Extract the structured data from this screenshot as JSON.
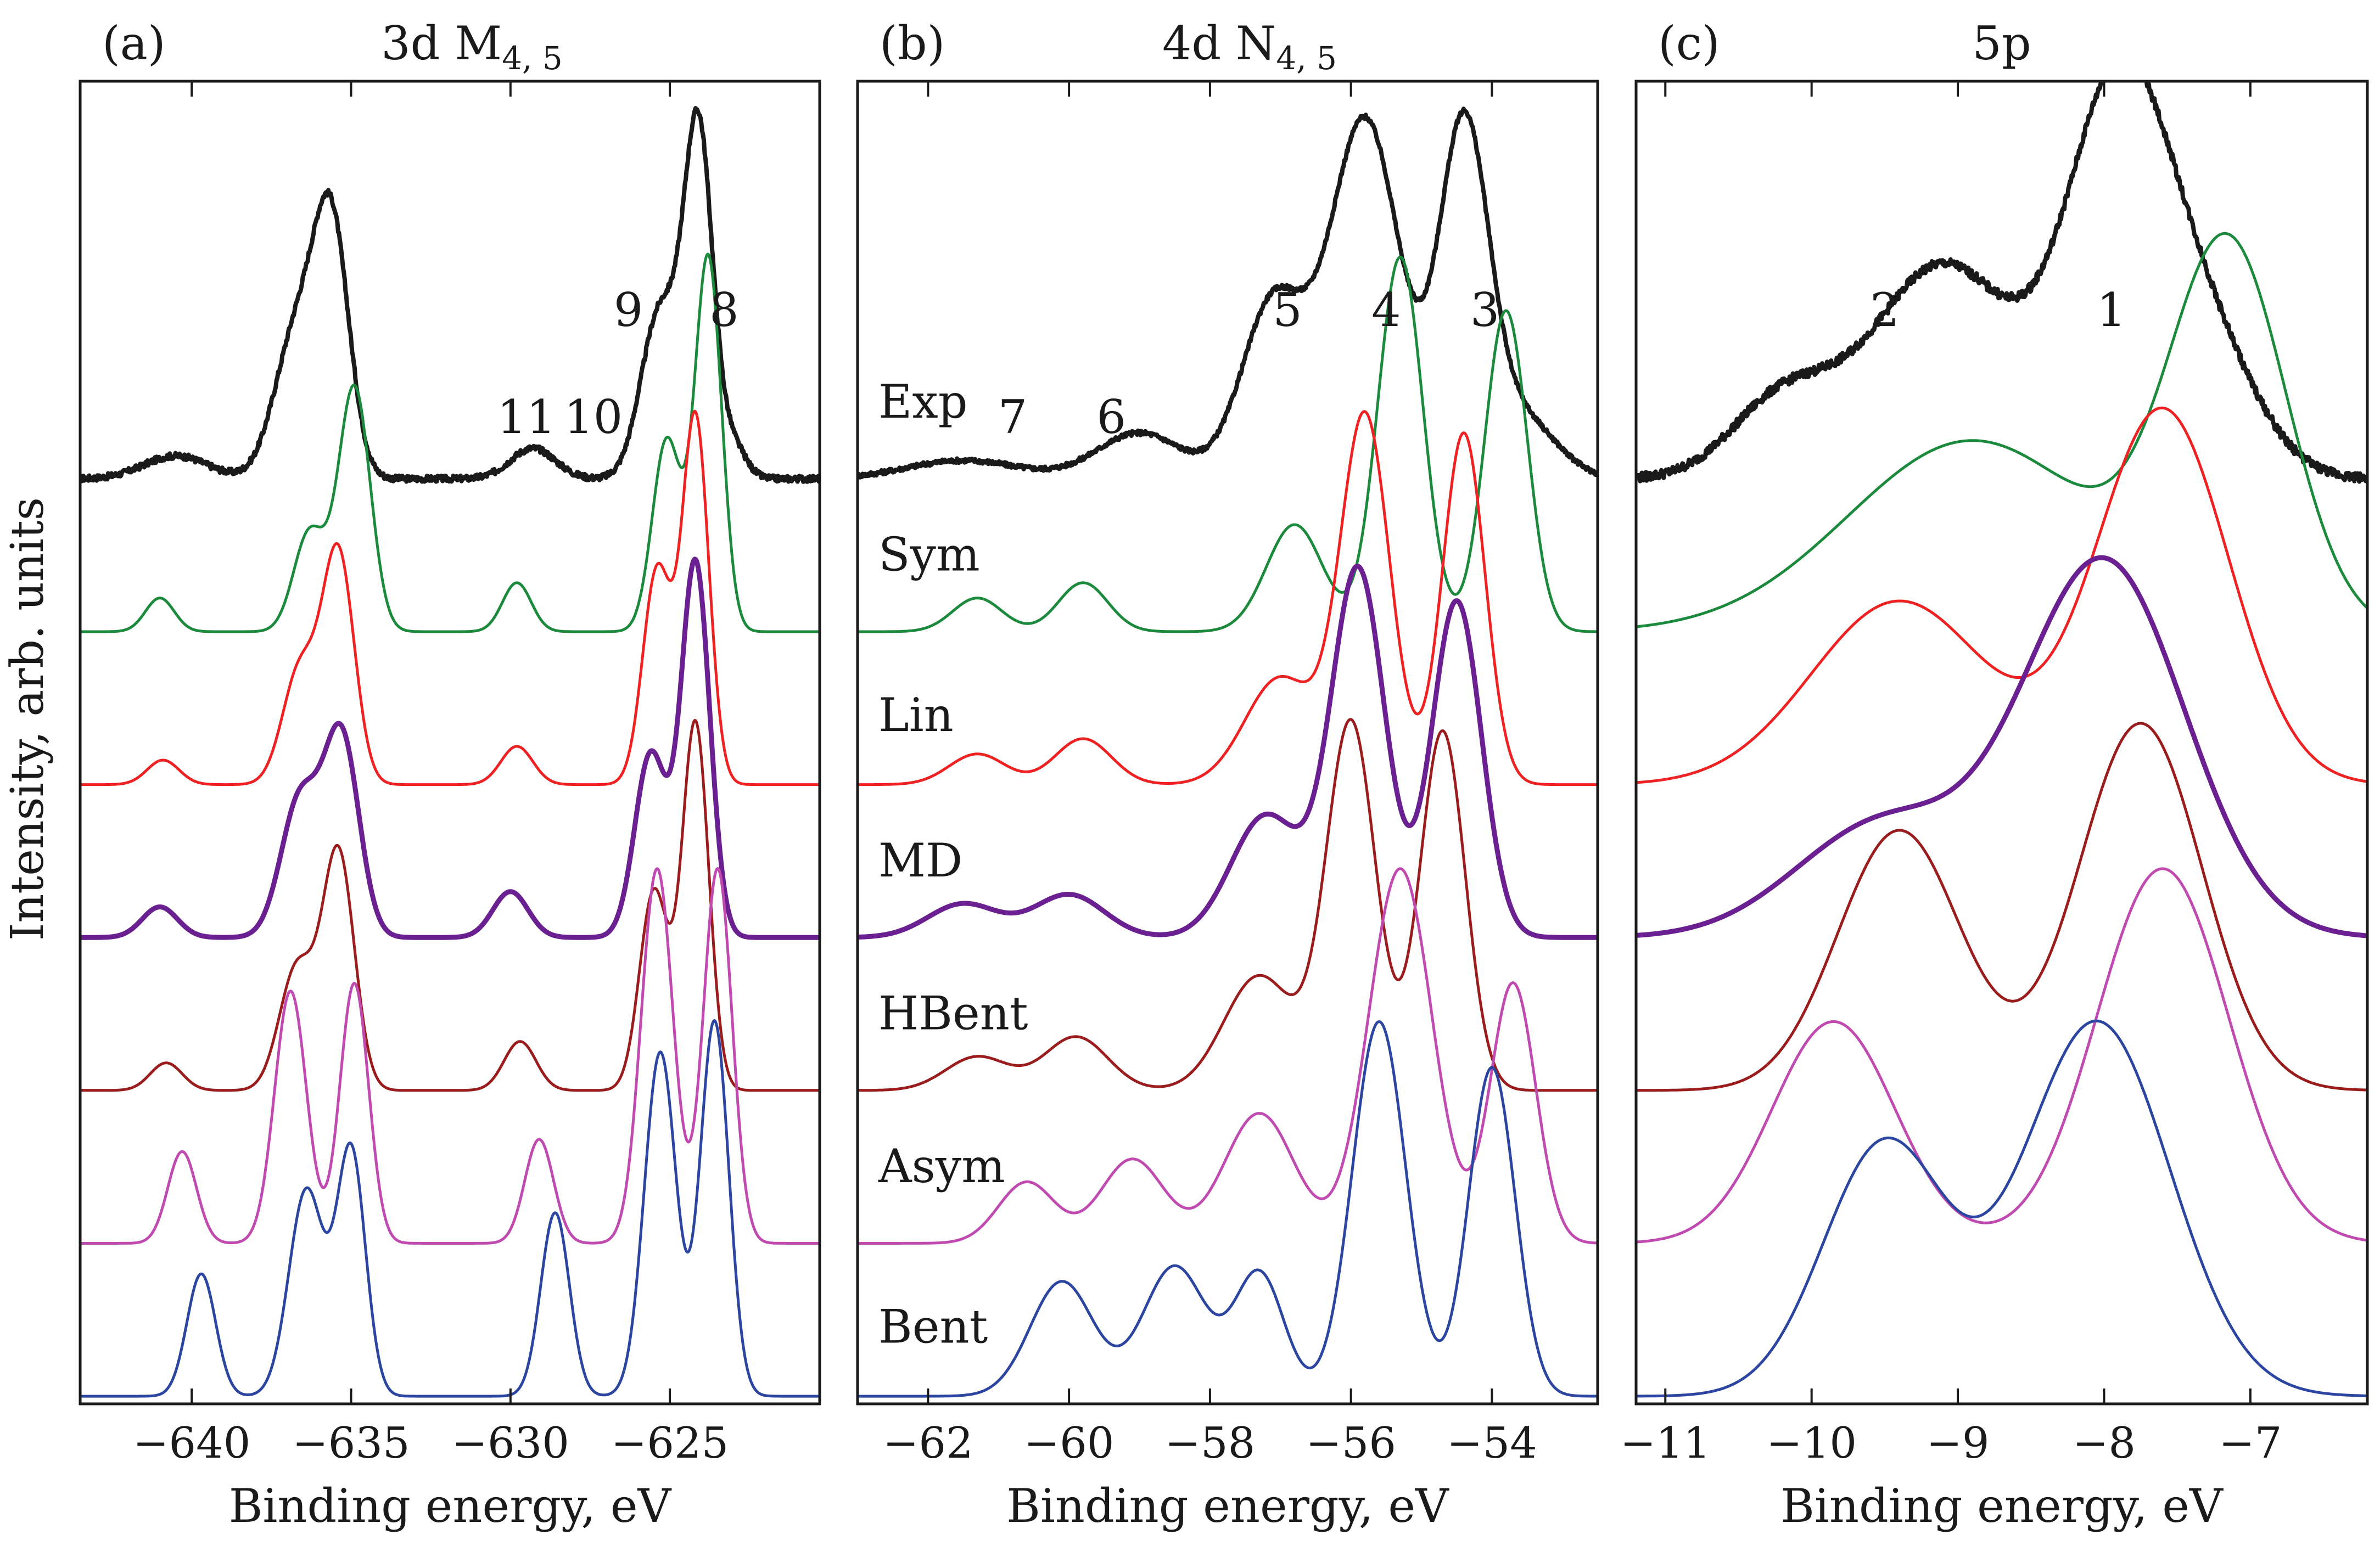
{
  "ylabel": "Intensity, arb. units",
  "colors": {
    "Exp": "#1a1a1a",
    "Sym": "#1b8a3c",
    "Lin": "#ee2222",
    "MD": "#6a2090",
    "HBent": "#9b1c1c",
    "Asym": "#c04ab0",
    "Bent": "#2b45a0"
  },
  "chart_data": [
    {
      "type": "line",
      "panel": "(a)",
      "title": "3d M₄,₅",
      "xlabel": "Binding energy, eV",
      "xlim": [
        -643.5,
        -620.3
      ],
      "xticks": [
        -640,
        -635,
        -630,
        -625
      ],
      "xtick_labels": [
        "−640",
        "−635",
        "−630",
        "−625"
      ],
      "peak_labels": [
        {
          "text": "9",
          "x": -626.3,
          "y": 7.0
        },
        {
          "text": "8",
          "x": -623.3,
          "y": 7.0
        },
        {
          "text": "11",
          "x": -629.5,
          "y": 6.3
        },
        {
          "text": "10",
          "x": -627.4,
          "y": 6.3
        }
      ],
      "series": [
        {
          "name": "Exp",
          "baseline": 6.0,
          "noise": 0.02,
          "peaks": [
            [
              -640.5,
              0.15,
              1.0
            ],
            [
              -636.7,
              0.95,
              0.7
            ],
            [
              -635.6,
              1.55,
              0.55
            ],
            [
              -629.3,
              0.2,
              0.7
            ],
            [
              -625.3,
              1.1,
              0.6
            ],
            [
              -624.1,
              2.25,
              0.45
            ],
            [
              -623.0,
              0.2,
              0.4
            ]
          ]
        },
        {
          "name": "Sym",
          "baseline": 5.0,
          "peaks": [
            [
              -641.0,
              0.22,
              0.45
            ],
            [
              -636.3,
              0.65,
              0.5
            ],
            [
              -634.9,
              1.6,
              0.5
            ],
            [
              -629.8,
              0.32,
              0.45
            ],
            [
              -625.1,
              1.25,
              0.45
            ],
            [
              -623.8,
              2.45,
              0.42
            ]
          ]
        },
        {
          "name": "Lin",
          "baseline": 4.0,
          "peaks": [
            [
              -640.9,
              0.16,
              0.5
            ],
            [
              -636.6,
              0.75,
              0.55
            ],
            [
              -635.4,
              1.5,
              0.5
            ],
            [
              -629.8,
              0.25,
              0.5
            ],
            [
              -625.4,
              1.4,
              0.45
            ],
            [
              -624.2,
              2.4,
              0.42
            ]
          ]
        },
        {
          "name": "MD",
          "baseline": 3.0,
          "peaks": [
            [
              -641.0,
              0.2,
              0.55
            ],
            [
              -636.6,
              0.9,
              0.6
            ],
            [
              -635.3,
              1.3,
              0.55
            ],
            [
              -630.0,
              0.3,
              0.55
            ],
            [
              -625.6,
              1.2,
              0.5
            ],
            [
              -624.2,
              2.45,
              0.45
            ]
          ]
        },
        {
          "name": "HBent",
          "baseline": 2.0,
          "peaks": [
            [
              -640.8,
              0.18,
              0.5
            ],
            [
              -636.7,
              0.8,
              0.55
            ],
            [
              -635.4,
              1.55,
              0.5
            ],
            [
              -629.7,
              0.32,
              0.5
            ],
            [
              -625.5,
              1.3,
              0.45
            ],
            [
              -624.2,
              2.4,
              0.42
            ]
          ]
        },
        {
          "name": "Asym",
          "baseline": 1.0,
          "peaks": [
            [
              -640.3,
              0.6,
              0.45
            ],
            [
              -636.9,
              1.65,
              0.5
            ],
            [
              -634.9,
              1.7,
              0.45
            ],
            [
              -629.1,
              0.68,
              0.45
            ],
            [
              -625.4,
              2.45,
              0.5
            ],
            [
              -623.5,
              2.45,
              0.45
            ]
          ]
        },
        {
          "name": "Bent",
          "baseline": 0.0,
          "peaks": [
            [
              -639.7,
              0.8,
              0.45
            ],
            [
              -636.4,
              1.35,
              0.55
            ],
            [
              -635.0,
              1.6,
              0.45
            ],
            [
              -628.6,
              1.2,
              0.45
            ],
            [
              -625.3,
              2.25,
              0.5
            ],
            [
              -623.6,
              2.45,
              0.45
            ]
          ]
        }
      ]
    },
    {
      "type": "line",
      "panel": "(b)",
      "title": "4d N₄,₅",
      "xlabel": "Binding energy, eV",
      "xlim": [
        -63.0,
        -52.5
      ],
      "xticks": [
        -62,
        -60,
        -58,
        -56,
        -54
      ],
      "xtick_labels": [
        "−62",
        "−60",
        "−58",
        "−56",
        "−54"
      ],
      "peak_labels": [
        {
          "text": "5",
          "x": -56.9,
          "y": 7.0
        },
        {
          "text": "4",
          "x": -55.5,
          "y": 7.0
        },
        {
          "text": "3",
          "x": -54.1,
          "y": 7.0
        },
        {
          "text": "7",
          "x": -60.8,
          "y": 6.3
        },
        {
          "text": "6",
          "x": -59.4,
          "y": 6.3
        }
      ],
      "labels_left": [
        {
          "text": "Exp",
          "series": "Exp",
          "y": 6.4
        },
        {
          "text": "Sym",
          "series": "Sym",
          "y": 5.4
        },
        {
          "text": "Lin",
          "series": "Lin",
          "y": 4.35
        },
        {
          "text": "MD",
          "series": "MD",
          "y": 3.4
        },
        {
          "text": "HBent",
          "series": "HBent",
          "y": 2.4
        },
        {
          "text": "Asym",
          "series": "Asym",
          "y": 1.4
        },
        {
          "text": "Bent",
          "series": "Bent",
          "y": 0.35
        }
      ],
      "series": [
        {
          "name": "Exp",
          "baseline": 6.0,
          "noise": 0.015,
          "peaks": [
            [
              -61.5,
              0.12,
              0.8
            ],
            [
              -59.0,
              0.3,
              0.6
            ],
            [
              -57.1,
              1.15,
              0.45
            ],
            [
              -55.8,
              2.35,
              0.5
            ],
            [
              -54.4,
              2.25,
              0.35
            ],
            [
              -53.6,
              0.4,
              0.5
            ]
          ]
        },
        {
          "name": "Sym",
          "baseline": 5.0,
          "peaks": [
            [
              -61.3,
              0.22,
              0.35
            ],
            [
              -59.8,
              0.32,
              0.35
            ],
            [
              -56.8,
              0.7,
              0.4
            ],
            [
              -55.3,
              2.45,
              0.32
            ],
            [
              -53.8,
              2.1,
              0.3
            ]
          ]
        },
        {
          "name": "Lin",
          "baseline": 4.0,
          "peaks": [
            [
              -61.3,
              0.2,
              0.4
            ],
            [
              -59.8,
              0.3,
              0.4
            ],
            [
              -57.0,
              0.7,
              0.5
            ],
            [
              -55.8,
              2.4,
              0.35
            ],
            [
              -54.4,
              2.3,
              0.3
            ]
          ]
        },
        {
          "name": "MD",
          "baseline": 3.0,
          "peaks": [
            [
              -61.5,
              0.22,
              0.5
            ],
            [
              -60.0,
              0.28,
              0.5
            ],
            [
              -57.2,
              0.8,
              0.5
            ],
            [
              -55.9,
              2.4,
              0.38
            ],
            [
              -54.5,
              2.2,
              0.35
            ]
          ]
        },
        {
          "name": "HBent",
          "baseline": 2.0,
          "peaks": [
            [
              -61.3,
              0.22,
              0.45
            ],
            [
              -59.9,
              0.35,
              0.45
            ],
            [
              -57.3,
              0.75,
              0.5
            ],
            [
              -56.0,
              2.4,
              0.35
            ],
            [
              -54.7,
              2.35,
              0.32
            ]
          ]
        },
        {
          "name": "Asym",
          "baseline": 1.0,
          "peaks": [
            [
              -60.6,
              0.4,
              0.4
            ],
            [
              -59.1,
              0.55,
              0.45
            ],
            [
              -57.3,
              0.85,
              0.5
            ],
            [
              -55.3,
              2.45,
              0.45
            ],
            [
              -53.7,
              1.7,
              0.32
            ]
          ]
        },
        {
          "name": "Bent",
          "baseline": 0.0,
          "peaks": [
            [
              -60.1,
              0.75,
              0.45
            ],
            [
              -58.5,
              0.85,
              0.45
            ],
            [
              -57.3,
              0.8,
              0.35
            ],
            [
              -55.6,
              2.45,
              0.38
            ],
            [
              -54.0,
              2.15,
              0.33
            ]
          ]
        }
      ]
    },
    {
      "type": "line",
      "panel": "(c)",
      "title": "5p",
      "xlabel": "Binding energy, eV",
      "xlim": [
        -11.2,
        -6.2
      ],
      "xticks": [
        -11,
        -10,
        -9,
        -8,
        -7
      ],
      "xtick_labels": [
        "−11",
        "−10",
        "−9",
        "−8",
        "−7"
      ],
      "peak_labels": [
        {
          "text": "2",
          "x": -9.5,
          "y": 7.0
        },
        {
          "text": "1",
          "x": -7.95,
          "y": 7.0
        }
      ],
      "series": [
        {
          "name": "Exp",
          "baseline": 6.0,
          "noise": 0.03,
          "peaks": [
            [
              -10.2,
              0.5,
              0.35
            ],
            [
              -9.1,
              1.4,
              0.5
            ],
            [
              -7.9,
              2.5,
              0.35
            ],
            [
              -7.3,
              0.8,
              0.35
            ]
          ]
        },
        {
          "name": "Sym",
          "baseline": 5.0,
          "peaks": [
            [
              -8.9,
              1.25,
              0.85
            ],
            [
              -7.15,
              2.45,
              0.4
            ]
          ]
        },
        {
          "name": "Lin",
          "baseline": 4.0,
          "peaks": [
            [
              -9.4,
              1.2,
              0.6
            ],
            [
              -7.6,
              2.45,
              0.45
            ]
          ]
        },
        {
          "name": "MD",
          "baseline": 3.0,
          "peaks": [
            [
              -9.5,
              0.75,
              0.6
            ],
            [
              -8.0,
              2.45,
              0.55
            ]
          ]
        },
        {
          "name": "HBent",
          "baseline": 2.0,
          "peaks": [
            [
              -9.4,
              1.7,
              0.42
            ],
            [
              -7.75,
              2.4,
              0.42
            ]
          ]
        },
        {
          "name": "Asym",
          "baseline": 1.0,
          "peaks": [
            [
              -9.85,
              1.45,
              0.42
            ],
            [
              -7.6,
              2.45,
              0.45
            ]
          ]
        },
        {
          "name": "Bent",
          "baseline": 0.0,
          "peaks": [
            [
              -9.5,
              1.65,
              0.42
            ],
            [
              -8.05,
              2.45,
              0.5
            ]
          ]
        }
      ]
    }
  ]
}
